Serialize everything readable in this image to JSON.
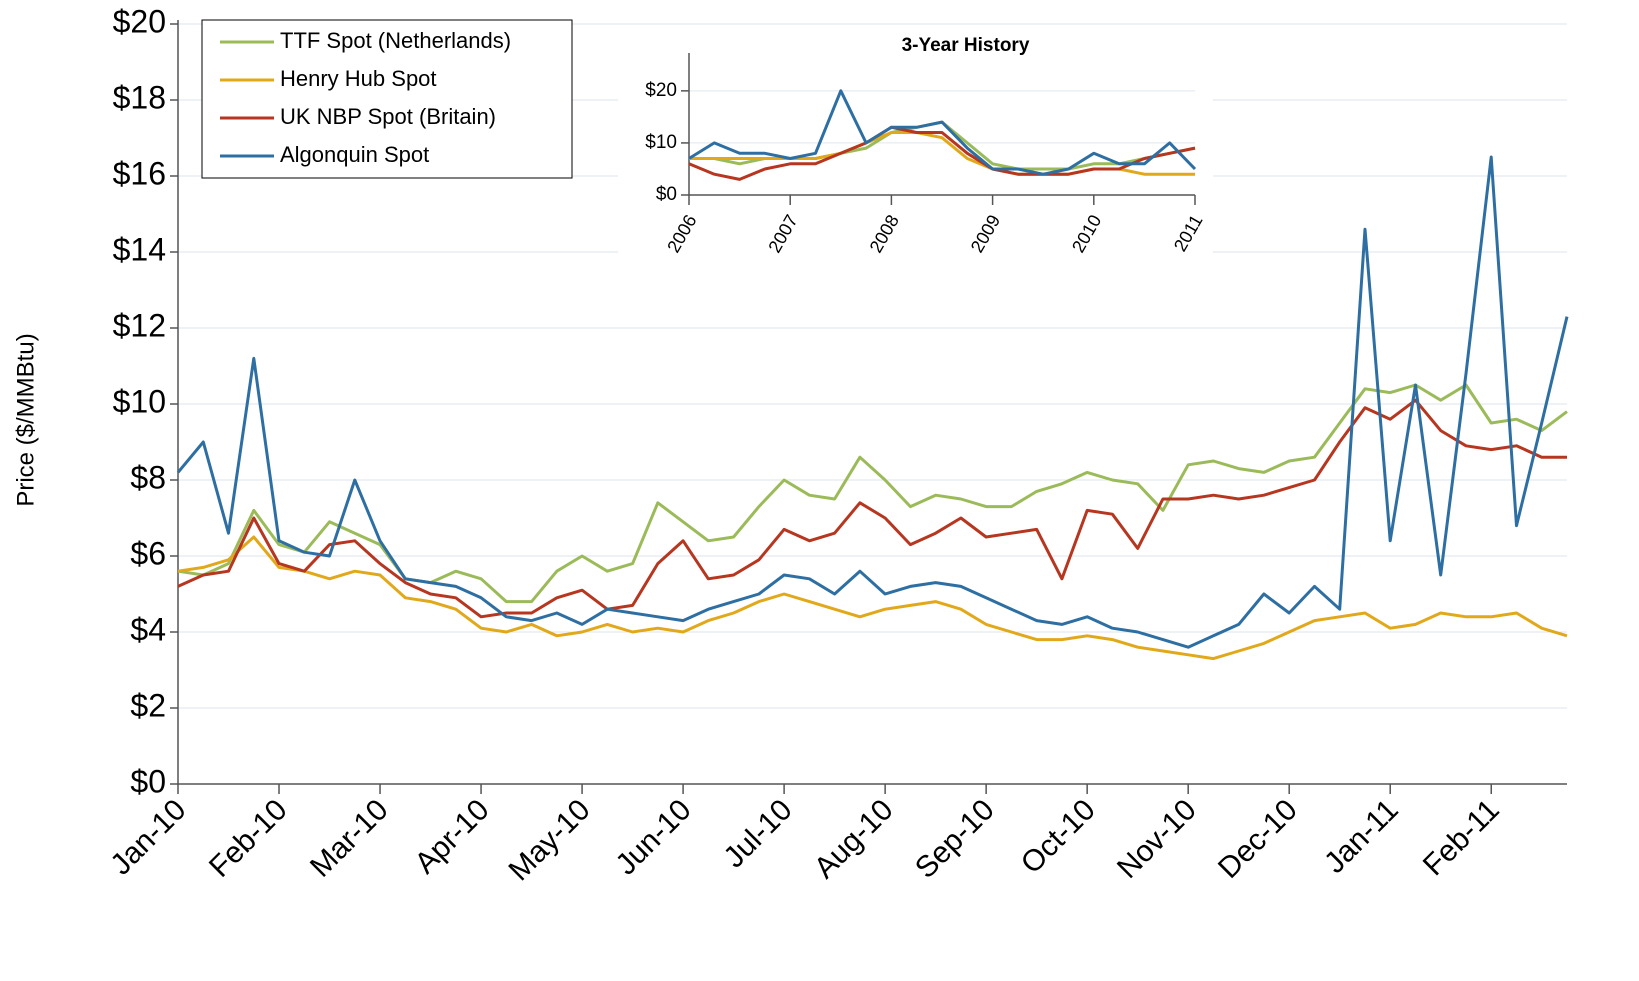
{
  "chart_data": [
    {
      "type": "line",
      "y_label": "Price ($/MMBtu)",
      "legend": "upper left",
      "grid": true,
      "categories": [
        "Jan-10",
        null,
        null,
        null,
        "Feb-10",
        null,
        null,
        null,
        "Mar-10",
        null,
        null,
        null,
        "Apr-10",
        null,
        null,
        null,
        "May-10",
        null,
        null,
        null,
        "Jun-10",
        null,
        null,
        null,
        "Jul-10",
        null,
        null,
        null,
        "Aug-10",
        null,
        null,
        null,
        "Sep-10",
        null,
        null,
        null,
        "Oct-10",
        null,
        null,
        null,
        "Nov-10",
        null,
        null,
        null,
        "Dec-10",
        null,
        null,
        null,
        "Jan-11",
        null,
        null,
        null,
        "Feb-11",
        null,
        null,
        null
      ],
      "ylim": [
        0,
        20
      ],
      "yticks": [
        {
          "value": 0,
          "label": "$0"
        },
        {
          "value": 2,
          "label": "$2"
        },
        {
          "value": 4,
          "label": "$4"
        },
        {
          "value": 6,
          "label": "$6"
        },
        {
          "value": 8,
          "label": "$8"
        },
        {
          "value": 10,
          "label": "$10"
        },
        {
          "value": 12,
          "label": "$12"
        },
        {
          "value": 14,
          "label": "$14"
        },
        {
          "value": 16,
          "label": "$16"
        },
        {
          "value": 18,
          "label": "$18"
        },
        {
          "value": 20,
          "label": "$20"
        }
      ],
      "series": [
        {
          "name": "TTF Spot (Netherlands)",
          "color": "#9bbb59",
          "values": [
            5.6,
            5.5,
            5.8,
            7.2,
            6.3,
            6.1,
            6.9,
            6.6,
            6.3,
            5.4,
            5.3,
            5.6,
            5.4,
            4.8,
            4.8,
            5.6,
            6.0,
            5.6,
            5.8,
            7.4,
            6.9,
            6.4,
            6.5,
            7.3,
            8.0,
            7.6,
            7.5,
            8.6,
            8.0,
            7.3,
            7.6,
            7.5,
            7.3,
            7.3,
            7.7,
            7.9,
            8.2,
            8.0,
            7.9,
            7.2,
            8.4,
            8.5,
            8.3,
            8.2,
            8.5,
            8.6,
            9.5,
            10.4,
            10.3,
            10.5,
            10.1,
            10.5,
            9.5,
            9.6,
            9.3,
            9.8
          ]
        },
        {
          "name": "Henry Hub Spot",
          "color": "#e1a81a",
          "values": [
            5.6,
            5.7,
            5.9,
            6.5,
            5.7,
            5.6,
            5.4,
            5.6,
            5.5,
            4.9,
            4.8,
            4.6,
            4.1,
            4.0,
            4.2,
            3.9,
            4.0,
            4.2,
            4.0,
            4.1,
            4.0,
            4.3,
            4.5,
            4.8,
            5.0,
            4.8,
            4.6,
            4.4,
            4.6,
            4.7,
            4.8,
            4.6,
            4.2,
            4.0,
            3.8,
            3.8,
            3.9,
            3.8,
            3.6,
            3.5,
            3.4,
            3.3,
            3.5,
            3.7,
            4.0,
            4.3,
            4.4,
            4.5,
            4.1,
            4.2,
            4.5,
            4.4,
            4.4,
            4.5,
            4.1,
            3.9
          ]
        },
        {
          "name": "UK NBP Spot (Britain)",
          "color": "#b7361f",
          "values": [
            5.2,
            5.5,
            5.6,
            7.0,
            5.8,
            5.6,
            6.3,
            6.4,
            5.8,
            5.3,
            5.0,
            4.9,
            4.4,
            4.5,
            4.5,
            4.9,
            5.1,
            4.6,
            4.7,
            5.8,
            6.4,
            5.4,
            5.5,
            5.9,
            6.7,
            6.4,
            6.6,
            7.4,
            7.0,
            6.3,
            6.6,
            7.0,
            6.5,
            6.6,
            6.7,
            5.4,
            7.2,
            7.1,
            6.2,
            7.5,
            7.5,
            7.6,
            7.5,
            7.6,
            7.8,
            8.0,
            9.0,
            9.9,
            9.6,
            10.1,
            9.3,
            8.9,
            8.8,
            8.9,
            8.6,
            8.6
          ]
        },
        {
          "name": "Algonquin Spot",
          "color": "#2e6fa3",
          "values": [
            8.2,
            9.0,
            6.6,
            11.2,
            6.4,
            6.1,
            6.0,
            8.0,
            6.4,
            5.4,
            5.3,
            5.2,
            4.9,
            4.4,
            4.3,
            4.5,
            4.2,
            4.6,
            4.5,
            4.4,
            4.3,
            4.6,
            4.8,
            5.0,
            5.5,
            5.4,
            5.0,
            5.6,
            5.0,
            5.2,
            5.3,
            5.2,
            4.9,
            4.6,
            4.3,
            4.2,
            4.4,
            4.1,
            4.0,
            3.8,
            3.6,
            3.9,
            4.2,
            5.0,
            4.5,
            5.2,
            4.6,
            14.6,
            6.4,
            10.5,
            5.5,
            10.8,
            16.5,
            6.8,
            9.5,
            12.3
          ]
        }
      ]
    },
    {
      "type": "line",
      "title": "3-Year History",
      "grid": true,
      "categories": [
        "2006",
        null,
        null,
        null,
        "2007",
        null,
        null,
        null,
        "2008",
        null,
        null,
        null,
        "2009",
        null,
        null,
        null,
        "2010",
        null,
        null,
        null,
        "2011"
      ],
      "ylim": [
        0,
        26.5
      ],
      "yticks": [
        {
          "value": 0,
          "label": "$0"
        },
        {
          "value": 10,
          "label": "$10"
        },
        {
          "value": 20,
          "label": "$20"
        }
      ],
      "series": [
        {
          "name": "TTF Spot (Netherlands)",
          "color": "#9bbb59",
          "values": [
            7,
            7,
            6,
            7,
            7,
            7,
            8,
            9,
            12,
            13,
            14,
            10,
            6,
            5,
            5,
            5,
            6,
            6,
            7,
            8,
            9
          ]
        },
        {
          "name": "Henry Hub Spot",
          "color": "#e1a81a",
          "values": [
            7,
            7,
            7,
            7,
            7,
            7,
            8,
            10,
            12,
            12,
            11,
            7,
            5,
            4,
            4,
            4,
            5,
            5,
            4,
            4,
            4
          ]
        },
        {
          "name": "UK NBP Spot (Britain)",
          "color": "#b7361f",
          "values": [
            6,
            4,
            3,
            5,
            6,
            6,
            8,
            10,
            13,
            12,
            12,
            8,
            5,
            4,
            4,
            4,
            5,
            5,
            7,
            8,
            9
          ]
        },
        {
          "name": "Algonquin Spot",
          "color": "#2e6fa3",
          "values": [
            7,
            10,
            8,
            8,
            7,
            8,
            20,
            10,
            13,
            13,
            14,
            9,
            5,
            5,
            4,
            5,
            8,
            6,
            6,
            10,
            5
          ]
        }
      ]
    }
  ]
}
